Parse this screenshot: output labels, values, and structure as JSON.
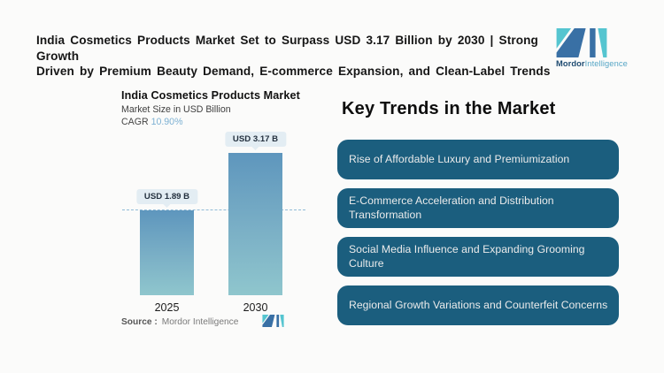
{
  "header": {
    "title_line1": "India Cosmetics Products Market Set to Surpass USD 3.17 Billion by 2030 | Strong Growth",
    "title_line2": "Driven by Premium Beauty Demand, E-commerce Expansion, and Clean-Label Trends",
    "brand_bold": "Mordor",
    "brand_light": "Intelligence"
  },
  "chart": {
    "title": "India Cosmetics Products Market",
    "subtitle": "Market Size in USD Billion",
    "cagr_label": "CAGR",
    "cagr_value": "10.90%",
    "source_label": "Source :",
    "source_value": "Mordor Intelligence"
  },
  "chart_data": {
    "type": "bar",
    "title": "India Cosmetics Products Market",
    "ylabel": "Market Size in USD Billion",
    "categories": [
      "2025",
      "2030"
    ],
    "values": [
      1.89,
      3.17
    ],
    "value_labels": [
      "USD 1.89 B",
      "USD 3.17 B"
    ],
    "cagr": "10.90%",
    "reference_line": 1.89,
    "ylim": [
      0,
      3.62
    ],
    "grid": false,
    "legend": false,
    "bar_gradient_top": "#5e96bd",
    "bar_gradient_bottom": "#8fc6cd",
    "reference_line_color": "#8fbad6",
    "value_tag_bg": "#e3edf3"
  },
  "trends": {
    "heading": "Key Trends in the Market",
    "banner_color": "#1b5e7e",
    "banner_text_color": "#ebebeb",
    "items": [
      "Rise of Affordable Luxury and Premiumization",
      "E-Commerce Acceleration and Distribution\nTransformation",
      "Social Media Influence and Expanding Grooming Culture",
      "Regional Growth Variations and Counterfeit Concerns"
    ]
  },
  "colors": {
    "background": "#fbfbfa",
    "header_text": "#161616",
    "logo_teal": "#55c5d0",
    "logo_blue": "#3970a5"
  }
}
